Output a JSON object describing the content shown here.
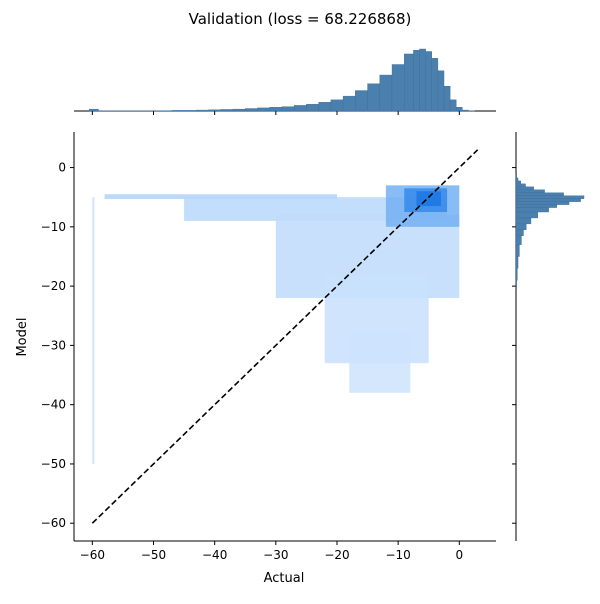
{
  "chart_data": {
    "type": "heatmap",
    "title": "Validation (loss = 68.226868)",
    "xlabel": "Actual",
    "ylabel": "Model",
    "xlim": [
      -63,
      6
    ],
    "ylim": [
      -63,
      6
    ],
    "x_ticks": [
      -60,
      -50,
      -40,
      -30,
      -20,
      -10,
      0
    ],
    "y_ticks": [
      -60,
      -50,
      -40,
      -30,
      -20,
      -10,
      0
    ],
    "x_tick_labels": [
      "−60",
      "−50",
      "−40",
      "−30",
      "−20",
      "−10",
      "0"
    ],
    "y_tick_labels": [
      "−60",
      "−50",
      "−40",
      "−30",
      "−20",
      "−10",
      "0"
    ],
    "reference_line": {
      "x": [
        -60,
        3
      ],
      "y": [
        -60,
        3
      ],
      "style": "dashed",
      "color": "#000000"
    },
    "joint_density_regions": [
      {
        "x": [
          -58,
          -20
        ],
        "y": [
          -5.3,
          -4.5
        ],
        "level": 0.15
      },
      {
        "x": [
          -45,
          -2
        ],
        "y": [
          -9,
          -5
        ],
        "level": 0.12
      },
      {
        "x": [
          -30,
          0
        ],
        "y": [
          -22,
          -8
        ],
        "level": 0.1
      },
      {
        "x": [
          -22,
          -5
        ],
        "y": [
          -33,
          -18
        ],
        "level": 0.07
      },
      {
        "x": [
          -18,
          -8
        ],
        "y": [
          -38,
          -28
        ],
        "level": 0.05
      },
      {
        "x": [
          -12,
          0
        ],
        "y": [
          -10,
          -3
        ],
        "level": 0.35
      },
      {
        "x": [
          -9,
          -2
        ],
        "y": [
          -7.5,
          -3.5
        ],
        "level": 0.65
      },
      {
        "x": [
          -7,
          -3
        ],
        "y": [
          -6.5,
          -4
        ],
        "level": 0.9
      },
      {
        "x": [
          -60,
          -60
        ],
        "y": [
          -50,
          -5
        ],
        "level": 0.08
      }
    ],
    "x_marginal": {
      "bin_centers": [
        -60,
        -58,
        -56,
        -54,
        -52,
        -50,
        -48,
        -46,
        -44,
        -42,
        -40,
        -38,
        -36,
        -34,
        -32,
        -30,
        -28,
        -26,
        -24,
        -22,
        -20,
        -18,
        -16,
        -14,
        -12,
        -10,
        -8,
        -7,
        -6,
        -5,
        -4,
        -3,
        -2,
        -1,
        0,
        1,
        2
      ],
      "counts": [
        0.03,
        0.005,
        0.005,
        0.005,
        0.005,
        0.005,
        0.005,
        0.01,
        0.01,
        0.015,
        0.02,
        0.025,
        0.03,
        0.04,
        0.05,
        0.06,
        0.07,
        0.09,
        0.11,
        0.14,
        0.18,
        0.24,
        0.33,
        0.44,
        0.58,
        0.75,
        0.92,
        0.98,
        1.0,
        0.96,
        0.85,
        0.65,
        0.4,
        0.18,
        0.06,
        0.015,
        0.005
      ]
    },
    "y_marginal": {
      "bin_centers": [
        -20,
        -18,
        -16,
        -14,
        -12,
        -11,
        -10,
        -9,
        -8,
        -7,
        -6.5,
        -6,
        -5.5,
        -5,
        -4.5,
        -4,
        -3.5,
        -3,
        -2.5,
        -2,
        -1.5
      ],
      "counts": [
        0.01,
        0.02,
        0.03,
        0.05,
        0.08,
        0.11,
        0.15,
        0.22,
        0.32,
        0.48,
        0.6,
        0.78,
        0.95,
        1.0,
        0.7,
        0.42,
        0.26,
        0.14,
        0.07,
        0.03,
        0.01
      ]
    }
  }
}
